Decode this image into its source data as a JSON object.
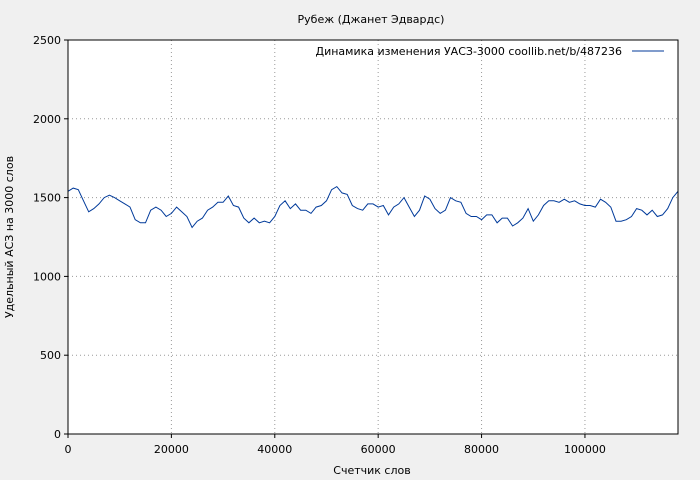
{
  "chart_data": {
    "type": "line",
    "title": "Рубеж (Джанет Эдвардс)",
    "xlabel": "Счетчик слов",
    "ylabel": "Удельный АСЗ на 3000 слов",
    "xlim": [
      0,
      118000
    ],
    "ylim": [
      0,
      2500
    ],
    "x_ticks": [
      0,
      20000,
      40000,
      60000,
      80000,
      100000
    ],
    "y_ticks": [
      0,
      500,
      1000,
      1500,
      2000,
      2500
    ],
    "grid": true,
    "legend_position": "top-right",
    "series": [
      {
        "name": "Динамика изменения УАСЗ-3000  coollib.net/b/487236",
        "color": "#003a9a",
        "x": [
          0,
          1000,
          2000,
          3000,
          4000,
          5000,
          6000,
          7000,
          8000,
          9000,
          10000,
          11000,
          12000,
          13000,
          14000,
          15000,
          16000,
          17000,
          18000,
          19000,
          20000,
          21000,
          22000,
          23000,
          24000,
          25000,
          26000,
          27000,
          28000,
          29000,
          30000,
          31000,
          32000,
          33000,
          34000,
          35000,
          36000,
          37000,
          38000,
          39000,
          40000,
          41000,
          42000,
          43000,
          44000,
          45000,
          46000,
          47000,
          48000,
          49000,
          50000,
          51000,
          52000,
          53000,
          54000,
          55000,
          56000,
          57000,
          58000,
          59000,
          60000,
          61000,
          62000,
          63000,
          64000,
          65000,
          66000,
          67000,
          68000,
          69000,
          70000,
          71000,
          72000,
          73000,
          74000,
          75000,
          76000,
          77000,
          78000,
          79000,
          80000,
          81000,
          82000,
          83000,
          84000,
          85000,
          86000,
          87000,
          88000,
          89000,
          90000,
          91000,
          92000,
          93000,
          94000,
          95000,
          96000,
          97000,
          98000,
          99000,
          100000,
          101000,
          102000,
          103000,
          104000,
          105000,
          106000,
          107000,
          108000,
          109000,
          110000,
          111000,
          112000,
          113000,
          114000,
          115000,
          116000,
          117000,
          118000
        ],
        "y": [
          1540,
          1560,
          1550,
          1480,
          1410,
          1430,
          1460,
          1500,
          1515,
          1500,
          1480,
          1460,
          1440,
          1360,
          1340,
          1340,
          1420,
          1440,
          1420,
          1380,
          1400,
          1440,
          1410,
          1380,
          1310,
          1350,
          1370,
          1420,
          1440,
          1470,
          1470,
          1510,
          1450,
          1440,
          1370,
          1340,
          1370,
          1340,
          1350,
          1340,
          1380,
          1450,
          1480,
          1430,
          1460,
          1420,
          1420,
          1400,
          1440,
          1450,
          1480,
          1550,
          1570,
          1530,
          1520,
          1450,
          1430,
          1420,
          1460,
          1460,
          1440,
          1450,
          1390,
          1440,
          1460,
          1500,
          1440,
          1380,
          1420,
          1510,
          1490,
          1430,
          1400,
          1420,
          1500,
          1480,
          1470,
          1400,
          1380,
          1380,
          1360,
          1390,
          1390,
          1340,
          1370,
          1370,
          1320,
          1340,
          1370,
          1430,
          1350,
          1390,
          1450,
          1480,
          1480,
          1470,
          1490,
          1470,
          1480,
          1460,
          1450,
          1450,
          1440,
          1490,
          1470,
          1440,
          1350,
          1350,
          1360,
          1380,
          1430,
          1420,
          1390,
          1420,
          1380,
          1390,
          1430,
          1500,
          1540
        ]
      }
    ]
  }
}
